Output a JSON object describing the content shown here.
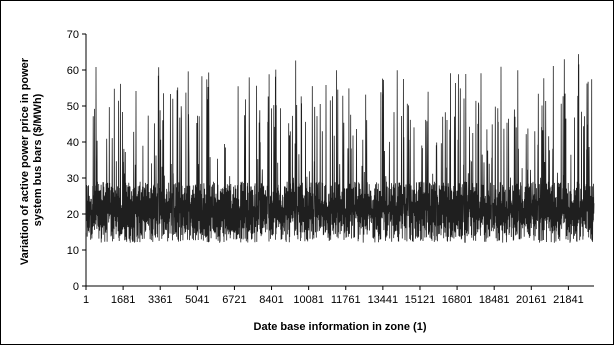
{
  "chart_data": {
    "type": "line",
    "title": "",
    "xlabel": "Date base information in zone (1)",
    "ylabel_lines": [
      "Variation of active power price in power",
      "system bus bars ($/MWh)"
    ],
    "ylim": [
      0,
      70
    ],
    "yticks": [
      0,
      10,
      20,
      30,
      40,
      50,
      60,
      70
    ],
    "xlim": [
      1,
      23000
    ],
    "xticks": [
      1,
      1681,
      3361,
      5041,
      6721,
      8401,
      10081,
      11761,
      13441,
      15121,
      16801,
      18481,
      20161,
      21841
    ],
    "grid": false,
    "legend": "none",
    "series_color": "#1f1f1f",
    "series": [
      {
        "band_low": 12,
        "band_high": 29,
        "typical_value": 21,
        "spike_peaks": [
          61,
          60,
          63,
          58,
          62,
          57,
          60,
          64,
          55,
          59,
          62,
          61,
          56,
          63,
          60,
          58,
          62,
          64,
          57,
          61,
          59,
          63,
          60,
          62,
          58,
          61,
          63,
          65,
          60,
          62
        ]
      }
    ]
  }
}
